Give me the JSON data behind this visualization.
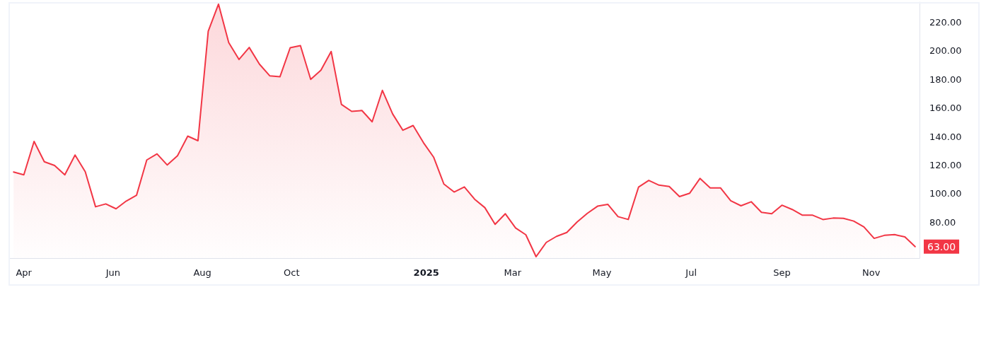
{
  "chart_data": {
    "type": "area",
    "x": [
      "2024-03-25",
      "2024-04-01",
      "2024-04-08",
      "2024-04-15",
      "2024-04-22",
      "2024-04-29",
      "2024-05-06",
      "2024-05-13",
      "2024-05-20",
      "2024-05-27",
      "2024-06-03",
      "2024-06-10",
      "2024-06-17",
      "2024-06-24",
      "2024-07-01",
      "2024-07-08",
      "2024-07-15",
      "2024-07-22",
      "2024-07-29",
      "2024-08-05",
      "2024-08-12",
      "2024-08-19",
      "2024-08-26",
      "2024-09-02",
      "2024-09-09",
      "2024-09-16",
      "2024-09-23",
      "2024-09-30",
      "2024-10-07",
      "2024-10-14",
      "2024-10-21",
      "2024-10-28",
      "2024-11-04",
      "2024-11-11",
      "2024-11-18",
      "2024-11-25",
      "2024-12-02",
      "2024-12-09",
      "2024-12-16",
      "2024-12-23",
      "2024-12-30",
      "2025-01-06",
      "2025-01-13",
      "2025-01-20",
      "2025-01-27",
      "2025-02-03",
      "2025-02-10",
      "2025-02-17",
      "2025-02-24",
      "2025-03-03",
      "2025-03-10",
      "2025-03-17",
      "2025-03-24",
      "2025-03-31",
      "2025-04-07",
      "2025-04-14",
      "2025-04-21",
      "2025-04-28",
      "2025-05-05",
      "2025-05-12",
      "2025-05-19",
      "2025-05-26",
      "2025-06-02",
      "2025-06-09",
      "2025-06-16",
      "2025-06-23",
      "2025-06-30",
      "2025-07-07",
      "2025-07-14",
      "2025-07-21",
      "2025-07-28",
      "2025-08-04",
      "2025-08-11",
      "2025-08-18",
      "2025-08-25",
      "2025-09-01",
      "2025-09-08",
      "2025-09-15",
      "2025-09-22",
      "2025-09-29",
      "2025-10-06",
      "2025-10-13",
      "2025-10-20",
      "2025-10-27",
      "2025-11-03",
      "2025-11-10",
      "2025-11-17",
      "2025-11-24",
      "2025-12-01"
    ],
    "series": [
      {
        "color": "#f23645",
        "values": [
          115.2,
          113.2,
          136.6,
          122.4,
          119.8,
          113.2,
          127.1,
          115.3,
          90.9,
          92.9,
          89.5,
          94.9,
          98.9,
          123.6,
          127.9,
          120.1,
          126.6,
          140.3,
          137.1,
          213.7,
          232.6,
          205.7,
          193.9,
          202.3,
          190.6,
          182.5,
          181.8,
          202.1,
          203.6,
          180.0,
          186.4,
          199.5,
          162.5,
          157.6,
          158.2,
          150.3,
          172.3,
          155.8,
          144.4,
          147.7,
          135.8,
          125.6,
          106.8,
          101.2,
          104.8,
          96.2,
          90.3,
          78.6,
          86.0,
          76.1,
          71.3,
          56.0,
          66.0,
          70.2,
          72.9,
          80.2,
          86.3,
          91.3,
          92.6,
          84.0,
          82.0,
          104.6,
          109.3,
          106.0,
          105.1,
          98.0,
          100.4,
          110.7,
          104.1,
          104.1,
          95.1,
          91.6,
          94.4,
          87.0,
          86.0,
          92.0,
          89.0,
          85.0,
          85.0,
          82.0,
          83.0,
          82.8,
          80.9,
          76.8,
          68.8,
          70.9,
          71.4,
          69.8,
          63.0
        ]
      }
    ],
    "xlim": [
      "2024-03-22",
      "2025-12-04"
    ],
    "xticks": [
      {
        "value": "2024-04-01",
        "label": "Apr"
      },
      {
        "value": "2024-06-01",
        "label": "Jun"
      },
      {
        "value": "2024-08-01",
        "label": "Aug"
      },
      {
        "value": "2024-10-01",
        "label": "Oct"
      },
      {
        "value": "2025-01-01",
        "label": "2025"
      },
      {
        "value": "2025-03-01",
        "label": "Mar"
      },
      {
        "value": "2025-05-01",
        "label": "May"
      },
      {
        "value": "2025-07-01",
        "label": "Jul"
      },
      {
        "value": "2025-09-01",
        "label": "Sep"
      },
      {
        "value": "2025-11-01",
        "label": "Nov"
      }
    ],
    "ylim": [
      55,
      234
    ],
    "yticks": [
      {
        "value": 80,
        "label": "80.00"
      },
      {
        "value": 100,
        "label": "100.00"
      },
      {
        "value": 120,
        "label": "120.00"
      },
      {
        "value": 140,
        "label": "140.00"
      },
      {
        "value": 160,
        "label": "160.00"
      },
      {
        "value": 180,
        "label": "180.00"
      },
      {
        "value": 200,
        "label": "200.00"
      },
      {
        "value": 220,
        "label": "220.00"
      }
    ],
    "grid": false,
    "marker": "none",
    "line_style": "solid",
    "annotations": [
      {
        "text": "63.00",
        "x": "2025-12-01",
        "y": 63
      }
    ]
  }
}
